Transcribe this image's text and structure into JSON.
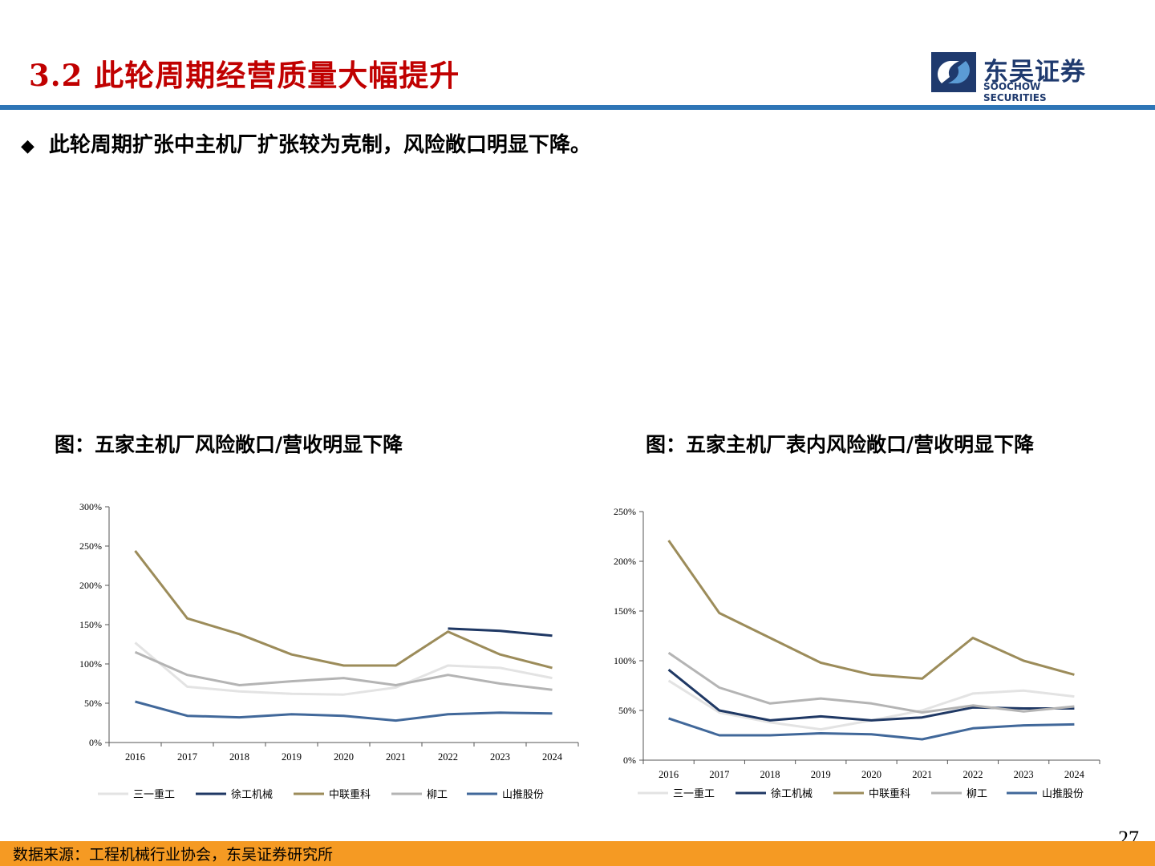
{
  "header": {
    "title": "3.2 此轮周期经营质量大幅提升",
    "logo_cn": "东吴证券",
    "logo_en": "SOOCHOW SECURITIES"
  },
  "bullet_text": "此轮周期扩张中主机厂扩张较为克制，风险敞口明显下降。",
  "footer": {
    "source": "数据来源：工程机械行业协会，东吴证券研究所",
    "page": "27"
  },
  "colors": {
    "三一重工": "#e3e3e3",
    "徐工机械": "#1f3864",
    "中联重科": "#9c8c5a",
    "柳工": "#b4b4b4",
    "山推股份": "#41689a"
  },
  "chart_data": [
    {
      "type": "line",
      "title": "图：五家主机厂风险敞口/营收明显下降",
      "categories": [
        "2016",
        "2017",
        "2018",
        "2019",
        "2020",
        "2021",
        "2022",
        "2023",
        "2024"
      ],
      "yticks": [
        "0%",
        "50%",
        "100%",
        "150%",
        "200%",
        "250%",
        "300%"
      ],
      "ylim": [
        0,
        300
      ],
      "legend_position": "bottom",
      "series": [
        {
          "name": "三一重工",
          "values": [
            127,
            71,
            65,
            62,
            61,
            70,
            98,
            95,
            82
          ]
        },
        {
          "name": "徐工机械",
          "values": [
            null,
            null,
            null,
            null,
            null,
            null,
            145,
            142,
            136
          ]
        },
        {
          "name": "中联重科",
          "values": [
            244,
            158,
            138,
            112,
            98,
            98,
            141,
            112,
            95
          ]
        },
        {
          "name": "柳工",
          "values": [
            115,
            86,
            73,
            78,
            82,
            73,
            86,
            75,
            67
          ]
        },
        {
          "name": "山推股份",
          "values": [
            52,
            34,
            32,
            36,
            34,
            28,
            36,
            38,
            37
          ]
        }
      ]
    },
    {
      "type": "line",
      "title": "图：五家主机厂表内风险敞口/营收明显下降",
      "categories": [
        "2016",
        "2017",
        "2018",
        "2019",
        "2020",
        "2021",
        "2022",
        "2023",
        "2024"
      ],
      "yticks": [
        "0%",
        "50%",
        "100%",
        "150%",
        "200%",
        "250%"
      ],
      "ylim": [
        0,
        250
      ],
      "legend_position": "bottom",
      "series": [
        {
          "name": "三一重工",
          "values": [
            80,
            48,
            38,
            31,
            40,
            50,
            67,
            70,
            64
          ]
        },
        {
          "name": "徐工机械",
          "values": [
            91,
            50,
            40,
            44,
            40,
            43,
            53,
            52,
            52
          ]
        },
        {
          "name": "中联重科",
          "values": [
            221,
            148,
            123,
            98,
            86,
            82,
            123,
            100,
            86
          ]
        },
        {
          "name": "柳工",
          "values": [
            108,
            73,
            57,
            62,
            57,
            48,
            55,
            49,
            54
          ]
        },
        {
          "name": "山推股份",
          "values": [
            42,
            25,
            25,
            27,
            26,
            21,
            32,
            35,
            36
          ]
        }
      ]
    }
  ]
}
